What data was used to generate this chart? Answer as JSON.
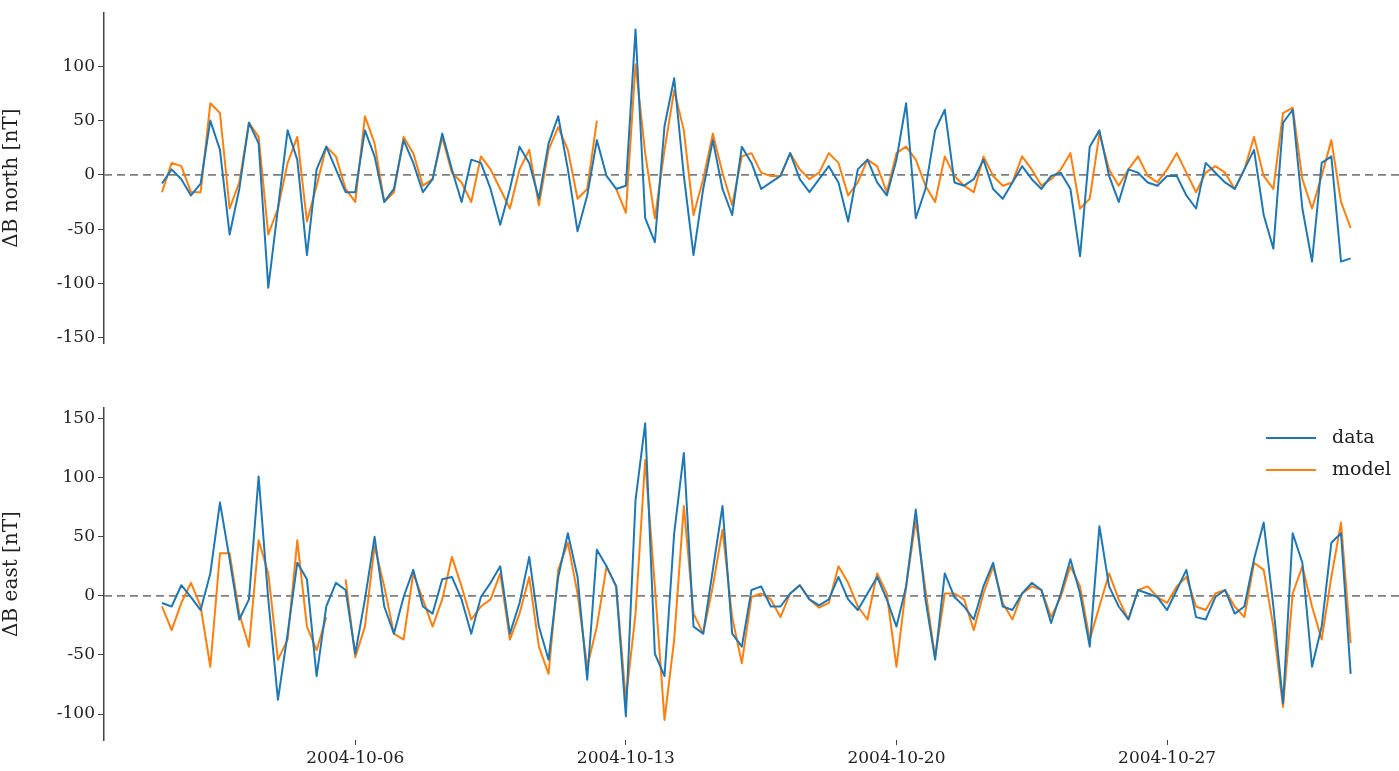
{
  "chart_data": [
    {
      "type": "line",
      "ylabel": "ΔB north [nT]",
      "tick_labels": "y",
      "x": [
        "2004-10-01T00:00",
        "2004-10-01T06:00",
        "2004-10-01T12:00",
        "2004-10-01T18:00",
        "2004-10-02T00:00",
        "2004-10-02T06:00",
        "2004-10-02T12:00",
        "2004-10-02T18:00",
        "2004-10-03T00:00",
        "2004-10-03T06:00",
        "2004-10-03T12:00",
        "2004-10-03T18:00",
        "2004-10-04T00:00",
        "2004-10-04T06:00",
        "2004-10-04T12:00",
        "2004-10-04T18:00",
        "2004-10-05T00:00",
        "2004-10-05T06:00",
        "2004-10-05T12:00",
        "2004-10-05T18:00",
        "2004-10-06T00:00",
        "2004-10-06T06:00",
        "2004-10-06T12:00",
        "2004-10-06T18:00",
        "2004-10-07T00:00",
        "2004-10-07T06:00",
        "2004-10-07T12:00",
        "2004-10-07T18:00",
        "2004-10-08T00:00",
        "2004-10-08T06:00",
        "2004-10-08T12:00",
        "2004-10-08T18:00",
        "2004-10-09T00:00",
        "2004-10-09T06:00",
        "2004-10-09T12:00",
        "2004-10-09T18:00",
        "2004-10-10T00:00",
        "2004-10-10T06:00",
        "2004-10-10T12:00",
        "2004-10-10T18:00",
        "2004-10-11T00:00",
        "2004-10-11T06:00",
        "2004-10-11T12:00",
        "2004-10-11T18:00",
        "2004-10-12T00:00",
        "2004-10-12T06:00",
        "2004-10-12T12:00",
        "2004-10-12T18:00",
        "2004-10-13T00:00",
        "2004-10-13T06:00",
        "2004-10-13T12:00",
        "2004-10-13T18:00",
        "2004-10-14T00:00",
        "2004-10-14T06:00",
        "2004-10-14T12:00",
        "2004-10-14T18:00",
        "2004-10-15T00:00",
        "2004-10-15T06:00",
        "2004-10-15T12:00",
        "2004-10-15T18:00",
        "2004-10-16T00:00",
        "2004-10-16T06:00",
        "2004-10-16T12:00",
        "2004-10-16T18:00",
        "2004-10-17T00:00",
        "2004-10-17T06:00",
        "2004-10-17T12:00",
        "2004-10-17T18:00",
        "2004-10-18T00:00",
        "2004-10-18T06:00",
        "2004-10-18T12:00",
        "2004-10-18T18:00",
        "2004-10-19T00:00",
        "2004-10-19T06:00",
        "2004-10-19T12:00",
        "2004-10-19T18:00",
        "2004-10-20T00:00",
        "2004-10-20T06:00",
        "2004-10-20T12:00",
        "2004-10-20T18:00",
        "2004-10-21T00:00",
        "2004-10-21T06:00",
        "2004-10-21T12:00",
        "2004-10-21T18:00",
        "2004-10-22T00:00",
        "2004-10-22T06:00",
        "2004-10-22T12:00",
        "2004-10-22T18:00",
        "2004-10-23T00:00",
        "2004-10-23T06:00",
        "2004-10-23T12:00",
        "2004-10-23T18:00",
        "2004-10-24T00:00",
        "2004-10-24T06:00",
        "2004-10-24T12:00",
        "2004-10-24T18:00",
        "2004-10-25T00:00",
        "2004-10-25T06:00",
        "2004-10-25T12:00",
        "2004-10-25T18:00",
        "2004-10-26T00:00",
        "2004-10-26T06:00",
        "2004-10-26T12:00",
        "2004-10-26T18:00",
        "2004-10-27T00:00",
        "2004-10-27T06:00",
        "2004-10-27T12:00",
        "2004-10-27T18:00",
        "2004-10-28T00:00",
        "2004-10-28T06:00",
        "2004-10-28T12:00",
        "2004-10-28T18:00",
        "2004-10-29T00:00",
        "2004-10-29T06:00",
        "2004-10-29T12:00",
        "2004-10-29T18:00",
        "2004-10-30T00:00",
        "2004-10-30T06:00",
        "2004-10-30T12:00",
        "2004-10-30T18:00",
        "2004-10-31T00:00",
        "2004-10-31T06:00",
        "2004-10-31T12:00",
        "2004-10-31T18:00"
      ],
      "series": [
        {
          "color": "#1f77b4",
          "values": [
            -8,
            5,
            -4,
            -19,
            -8,
            50,
            23,
            -55,
            -13,
            48,
            29,
            -104,
            -31,
            41,
            14,
            -74,
            5,
            26,
            5,
            -16,
            -16,
            41,
            17,
            -25,
            -13,
            32,
            11,
            -16,
            -4,
            38,
            5,
            -25,
            14,
            11,
            -13,
            -46,
            -13,
            26,
            11,
            -22,
            29,
            54,
            5,
            -52,
            -19,
            32,
            -1,
            -13,
            -10,
            134,
            -40,
            -62,
            45,
            89,
            -1,
            -74,
            -13,
            32,
            -13,
            -37,
            26,
            11,
            -13,
            -7,
            -1,
            20,
            -4,
            -16,
            -4,
            8,
            -7,
            -43,
            5,
            14,
            -7,
            -19,
            14,
            66,
            -40,
            -13,
            41,
            60,
            -7,
            -10,
            -4,
            14,
            -13,
            -22,
            -7,
            8,
            -4,
            -13,
            -1,
            2,
            -13,
            -75,
            26,
            41,
            -1,
            -25,
            5,
            2,
            -7,
            -10,
            -1,
            -1,
            -19,
            -31,
            11,
            2,
            -7,
            -13,
            5,
            23,
            -37,
            -68,
            48,
            60,
            -31,
            -80,
            11,
            17,
            -80,
            -77
          ]
        },
        {
          "color": "#ff7f0e",
          "values": [
            -16,
            11,
            8,
            -16,
            -16,
            66,
            57,
            -31,
            -7,
            48,
            35,
            -55,
            -31,
            11,
            35,
            -43,
            -10,
            26,
            17,
            -13,
            -25,
            54,
            29,
            -25,
            -16,
            35,
            20,
            -10,
            -4,
            35,
            2,
            -7,
            -25,
            17,
            5,
            -13,
            -31,
            5,
            23,
            -28,
            23,
            44,
            23,
            -22,
            -13,
            50,
            null,
            -13,
            -35,
            102,
            20,
            -40,
            23,
            78,
            41,
            -37,
            -4,
            38,
            2,
            -28,
            17,
            20,
            2,
            -1,
            -1,
            20,
            5,
            -4,
            2,
            20,
            11,
            -19,
            -7,
            14,
            8,
            -16,
            20,
            26,
            14,
            -10,
            -25,
            17,
            -1,
            -10,
            -16,
            17,
            -1,
            -10,
            -7,
            17,
            5,
            -10,
            -4,
            5,
            20,
            -31,
            -22,
            38,
            5,
            -10,
            5,
            17,
            -1,
            -7,
            5,
            20,
            2,
            -16,
            2,
            8,
            2,
            -13,
            5,
            35,
            -1,
            -13,
            57,
            62,
            -4,
            -31,
            -1,
            32,
            -25,
            -49
          ]
        }
      ],
      "xlim": [
        "2004-09-29T12:00",
        "2004-11-02T00:00"
      ],
      "xticks": [
        "2004-10-06",
        "2004-10-13",
        "2004-10-20",
        "2004-10-27"
      ],
      "ylim": [
        -155,
        149
      ],
      "yticks": [
        -150,
        -100,
        -50,
        0,
        50,
        100
      ],
      "ref_lines": [
        {
          "axis": "y",
          "value": 0,
          "color": "#7f7f7f",
          "line_style": "dashed"
        }
      ]
    },
    {
      "type": "line",
      "ylabel": "ΔB east [nT]",
      "legend": "top right",
      "x": [
        "2004-10-01T00:00",
        "2004-10-01T06:00",
        "2004-10-01T12:00",
        "2004-10-01T18:00",
        "2004-10-02T00:00",
        "2004-10-02T06:00",
        "2004-10-02T12:00",
        "2004-10-02T18:00",
        "2004-10-03T00:00",
        "2004-10-03T06:00",
        "2004-10-03T12:00",
        "2004-10-03T18:00",
        "2004-10-04T00:00",
        "2004-10-04T06:00",
        "2004-10-04T12:00",
        "2004-10-04T18:00",
        "2004-10-05T00:00",
        "2004-10-05T06:00",
        "2004-10-05T12:00",
        "2004-10-05T18:00",
        "2004-10-06T00:00",
        "2004-10-06T06:00",
        "2004-10-06T12:00",
        "2004-10-06T18:00",
        "2004-10-07T00:00",
        "2004-10-07T06:00",
        "2004-10-07T12:00",
        "2004-10-07T18:00",
        "2004-10-08T00:00",
        "2004-10-08T06:00",
        "2004-10-08T12:00",
        "2004-10-08T18:00",
        "2004-10-09T00:00",
        "2004-10-09T06:00",
        "2004-10-09T12:00",
        "2004-10-09T18:00",
        "2004-10-10T00:00",
        "2004-10-10T06:00",
        "2004-10-10T12:00",
        "2004-10-10T18:00",
        "2004-10-11T00:00",
        "2004-10-11T06:00",
        "2004-10-11T12:00",
        "2004-10-11T18:00",
        "2004-10-12T00:00",
        "2004-10-12T06:00",
        "2004-10-12T12:00",
        "2004-10-12T18:00",
        "2004-10-13T00:00",
        "2004-10-13T06:00",
        "2004-10-13T12:00",
        "2004-10-13T18:00",
        "2004-10-14T00:00",
        "2004-10-14T06:00",
        "2004-10-14T12:00",
        "2004-10-14T18:00",
        "2004-10-15T00:00",
        "2004-10-15T06:00",
        "2004-10-15T12:00",
        "2004-10-15T18:00",
        "2004-10-16T00:00",
        "2004-10-16T06:00",
        "2004-10-16T12:00",
        "2004-10-16T18:00",
        "2004-10-17T00:00",
        "2004-10-17T06:00",
        "2004-10-17T12:00",
        "2004-10-17T18:00",
        "2004-10-18T00:00",
        "2004-10-18T06:00",
        "2004-10-18T12:00",
        "2004-10-18T18:00",
        "2004-10-19T00:00",
        "2004-10-19T06:00",
        "2004-10-19T12:00",
        "2004-10-19T18:00",
        "2004-10-20T00:00",
        "2004-10-20T06:00",
        "2004-10-20T12:00",
        "2004-10-20T18:00",
        "2004-10-21T00:00",
        "2004-10-21T06:00",
        "2004-10-21T12:00",
        "2004-10-21T18:00",
        "2004-10-22T00:00",
        "2004-10-22T06:00",
        "2004-10-22T12:00",
        "2004-10-22T18:00",
        "2004-10-23T00:00",
        "2004-10-23T06:00",
        "2004-10-23T12:00",
        "2004-10-23T18:00",
        "2004-10-24T00:00",
        "2004-10-24T06:00",
        "2004-10-24T12:00",
        "2004-10-24T18:00",
        "2004-10-25T00:00",
        "2004-10-25T06:00",
        "2004-10-25T12:00",
        "2004-10-25T18:00",
        "2004-10-26T00:00",
        "2004-10-26T06:00",
        "2004-10-26T12:00",
        "2004-10-26T18:00",
        "2004-10-27T00:00",
        "2004-10-27T06:00",
        "2004-10-27T12:00",
        "2004-10-27T18:00",
        "2004-10-28T00:00",
        "2004-10-28T06:00",
        "2004-10-28T12:00",
        "2004-10-28T18:00",
        "2004-10-29T00:00",
        "2004-10-29T06:00",
        "2004-10-29T12:00",
        "2004-10-29T18:00",
        "2004-10-30T00:00",
        "2004-10-30T06:00",
        "2004-10-30T12:00",
        "2004-10-30T18:00",
        "2004-10-31T00:00",
        "2004-10-31T06:00",
        "2004-10-31T12:00",
        "2004-10-31T18:00"
      ],
      "series": [
        {
          "name": "data",
          "color": "#1f77b4",
          "values": [
            -6,
            -9,
            9,
            -1,
            -12,
            19,
            79,
            31,
            -20,
            -3,
            101,
            -3,
            -88,
            -32,
            28,
            14,
            -68,
            -9,
            11,
            5,
            -49,
            -3,
            50,
            -9,
            -32,
            -1,
            22,
            -9,
            -15,
            14,
            16,
            -3,
            -32,
            -1,
            11,
            25,
            -32,
            -6,
            33,
            -26,
            -54,
            16,
            53,
            16,
            -71,
            39,
            25,
            8,
            -102,
            81,
            146,
            -49,
            -68,
            53,
            121,
            -26,
            -32,
            22,
            76,
            -32,
            -43,
            5,
            8,
            -9,
            -9,
            2,
            9,
            -3,
            -8,
            -3,
            16,
            -3,
            -12,
            2,
            16,
            -3,
            -26,
            8,
            73,
            -3,
            -54,
            19,
            -1,
            -9,
            -20,
            8,
            28,
            -9,
            -12,
            2,
            11,
            5,
            -23,
            2,
            31,
            2,
            -43,
            59,
            8,
            -9,
            -20,
            5,
            2,
            -1,
            -12,
            5,
            22,
            -18,
            -20,
            -1,
            5,
            -15,
            -9,
            31,
            62,
            -9,
            -91,
            53,
            28,
            -60,
            -26,
            45,
            53,
            -66
          ]
        },
        {
          "name": "model",
          "color": "#ff7f0e",
          "values": [
            -9,
            -29,
            -6,
            11,
            -9,
            -60,
            36,
            36,
            -15,
            -43,
            47,
            19,
            -54,
            -37,
            47,
            -26,
            -46,
            -18,
            null,
            14,
            -52,
            -26,
            42,
            8,
            -32,
            -37,
            19,
            -3,
            -26,
            -3,
            33,
            8,
            -20,
            -9,
            -3,
            19,
            -37,
            -15,
            16,
            -43,
            -66,
            22,
            45,
            2,
            -60,
            -26,
            25,
            8,
            -88,
            -15,
            115,
            8,
            -105,
            -37,
            76,
            -15,
            -32,
            8,
            56,
            -18,
            -57,
            -1,
            2,
            -3,
            -18,
            2,
            9,
            -3,
            -10,
            -6,
            25,
            11,
            -9,
            -20,
            19,
            2,
            -60,
            8,
            64,
            5,
            -52,
            2,
            2,
            -3,
            -29,
            2,
            25,
            -6,
            -20,
            2,
            8,
            5,
            -18,
            -1,
            25,
            8,
            -37,
            -9,
            19,
            -3,
            -20,
            5,
            8,
            -1,
            -6,
            8,
            16,
            -9,
            -12,
            2,
            5,
            -9,
            -18,
            28,
            22,
            -26,
            -94,
            2,
            25,
            -9,
            -37,
            16,
            62,
            -40
          ]
        }
      ],
      "xlim": [
        "2004-09-29T12:00",
        "2004-11-02T00:00"
      ],
      "xticks": [
        "2004-10-06",
        "2004-10-13",
        "2004-10-20",
        "2004-10-27"
      ],
      "ylim": [
        -122,
        159
      ],
      "yticks": [
        -100,
        -50,
        0,
        50,
        100,
        150
      ],
      "ref_lines": [
        {
          "axis": "y",
          "value": 0,
          "color": "#7f7f7f",
          "line_style": "dashed"
        }
      ]
    }
  ]
}
